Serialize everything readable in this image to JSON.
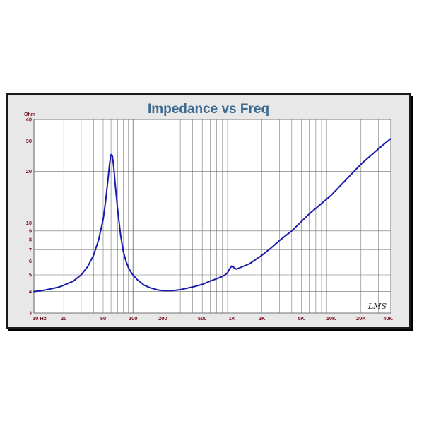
{
  "chart_data": {
    "type": "line",
    "title": "Impedance vs Freq",
    "ylabel": "Ohm",
    "xlabel": "",
    "x_scale": "log",
    "y_scale": "log",
    "xlim": [
      10,
      40000
    ],
    "ylim": [
      3,
      40
    ],
    "grid": true,
    "line_color": "#1a1aaa",
    "background_color": "#ffffff",
    "frame_color": "#e8e8e8",
    "title_color": "#3d6a90",
    "tick_label_color": "#7a1020",
    "x_tick_labels": [
      {
        "value": 10,
        "label": "10 Hz"
      },
      {
        "value": 20,
        "label": "20"
      },
      {
        "value": 50,
        "label": "50"
      },
      {
        "value": 100,
        "label": "100"
      },
      {
        "value": 200,
        "label": "200"
      },
      {
        "value": 500,
        "label": "500"
      },
      {
        "value": 1000,
        "label": "1K"
      },
      {
        "value": 2000,
        "label": "2K"
      },
      {
        "value": 5000,
        "label": "5K"
      },
      {
        "value": 10000,
        "label": "10K"
      },
      {
        "value": 20000,
        "label": "20K"
      },
      {
        "value": 40000,
        "label": "40K"
      }
    ],
    "y_tick_labels": [
      {
        "value": 3,
        "label": "3"
      },
      {
        "value": 4,
        "label": "4"
      },
      {
        "value": 5,
        "label": "5"
      },
      {
        "value": 6,
        "label": "6"
      },
      {
        "value": 7,
        "label": "7"
      },
      {
        "value": 8,
        "label": "8"
      },
      {
        "value": 9,
        "label": "9"
      },
      {
        "value": 10,
        "label": "10"
      },
      {
        "value": 20,
        "label": "20"
      },
      {
        "value": 30,
        "label": "30"
      },
      {
        "value": 40,
        "label": "40"
      }
    ],
    "series": [
      {
        "x": [
          10,
          12,
          15,
          18,
          20,
          25,
          30,
          35,
          40,
          45,
          50,
          53,
          56,
          58,
          60,
          62,
          64,
          66,
          70,
          75,
          80,
          85,
          90,
          95,
          100,
          110,
          130,
          150,
          180,
          200,
          250,
          300,
          400,
          500,
          600,
          700,
          800,
          850,
          900,
          950,
          1000,
          1050,
          1100,
          1200,
          1500,
          2000,
          2500,
          3000,
          4000,
          5000,
          6000,
          8000,
          10000,
          15000,
          20000,
          30000,
          40000
        ],
        "y": [
          4.0,
          4.05,
          4.15,
          4.25,
          4.35,
          4.6,
          5.0,
          5.6,
          6.5,
          8.0,
          10.5,
          13.5,
          18.0,
          22.0,
          25.0,
          24.5,
          21.0,
          17.0,
          12.0,
          8.5,
          6.8,
          6.0,
          5.5,
          5.2,
          5.0,
          4.7,
          4.35,
          4.2,
          4.08,
          4.05,
          4.05,
          4.1,
          4.25,
          4.4,
          4.6,
          4.75,
          4.9,
          5.0,
          5.15,
          5.45,
          5.65,
          5.5,
          5.4,
          5.5,
          5.8,
          6.5,
          7.2,
          7.9,
          9.0,
          10.2,
          11.3,
          13.0,
          14.5,
          18.5,
          22.0,
          27.0,
          31.0
        ]
      }
    ],
    "watermark": "LMS"
  }
}
